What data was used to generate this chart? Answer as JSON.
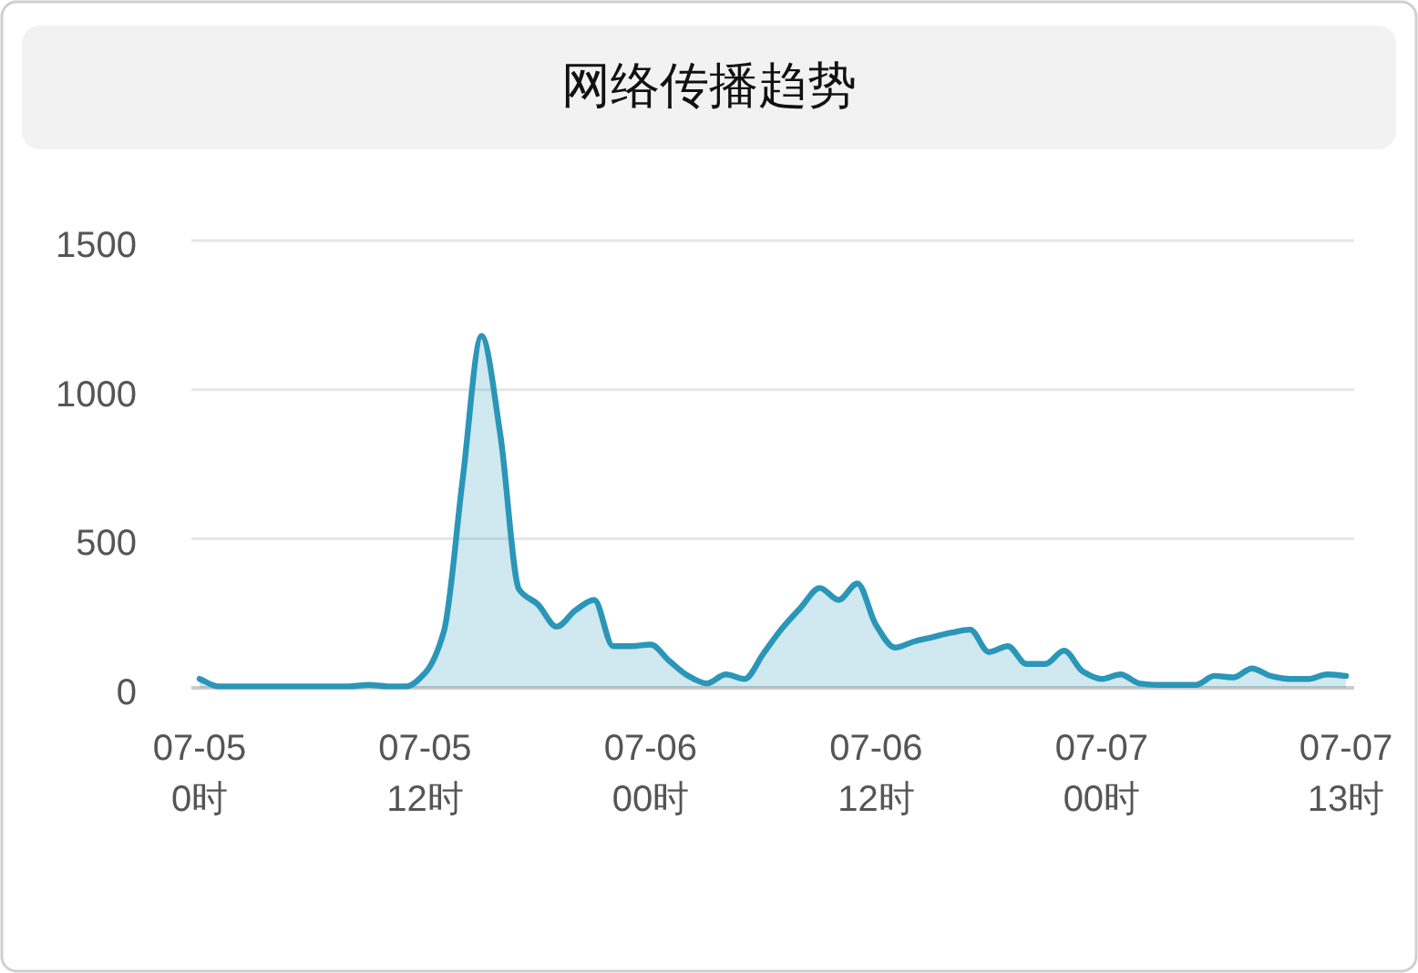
{
  "chart_data": {
    "type": "area",
    "title": "网络传播趋势",
    "categories": [
      "07-05 0时",
      null,
      null,
      null,
      null,
      null,
      null,
      null,
      null,
      null,
      null,
      null,
      "07-05 12时",
      null,
      null,
      null,
      null,
      null,
      null,
      null,
      null,
      null,
      null,
      null,
      "07-06 00时",
      null,
      null,
      null,
      null,
      null,
      null,
      null,
      null,
      null,
      null,
      null,
      "07-06 12时",
      null,
      null,
      null,
      null,
      null,
      null,
      null,
      null,
      null,
      null,
      null,
      "07-07 00时",
      null,
      null,
      null,
      null,
      null,
      null,
      null,
      null,
      null,
      null,
      null,
      null,
      "07-07 13时"
    ],
    "values": [
      30,
      5,
      5,
      5,
      5,
      5,
      5,
      5,
      5,
      10,
      5,
      5,
      50,
      190,
      700,
      1180,
      850,
      330,
      280,
      205,
      260,
      295,
      140,
      140,
      145,
      90,
      40,
      15,
      45,
      30,
      115,
      200,
      270,
      335,
      295,
      350,
      210,
      135,
      155,
      170,
      185,
      195,
      120,
      140,
      80,
      80,
      125,
      55,
      30,
      45,
      15,
      10,
      10,
      10,
      40,
      35,
      65,
      40,
      30,
      30,
      45,
      40
    ],
    "color": "#2a96b8",
    "ylim": [
      0,
      1500
    ],
    "yticks": [
      0,
      500,
      1000,
      1500
    ],
    "grid": "y"
  }
}
